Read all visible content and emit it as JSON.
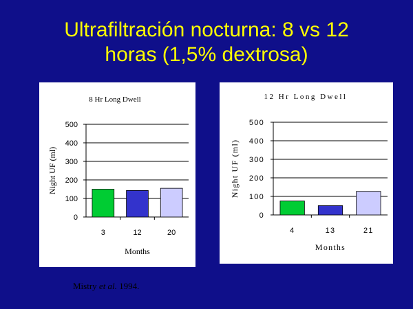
{
  "slide": {
    "title_line1": "Ultrafiltración nocturna: 8 vs 12",
    "title_line2": "horas (1,5% dextrosa)",
    "citation_author": "Mistry",
    "citation_etal": "et al.",
    "citation_year": " 1994."
  },
  "colors": {
    "background": "#0f0f8a",
    "title": "#ffff00",
    "bar_green": "#00cc33",
    "bar_blue": "#3333cc",
    "bar_lavender": "#ccccff"
  },
  "chart_data": [
    {
      "type": "bar",
      "title": "8 Hr Long Dwell",
      "xlabel": "Months",
      "ylabel": "Night UF (ml)",
      "categories": [
        "3",
        "12",
        "20"
      ],
      "values": [
        150,
        143,
        155
      ],
      "ylim": [
        0,
        500
      ],
      "yticks": [
        0,
        100,
        200,
        300,
        400,
        500
      ],
      "grid": true,
      "bar_colors": [
        "#00cc33",
        "#3333cc",
        "#ccccff"
      ]
    },
    {
      "type": "bar",
      "title": "12 Hr Long Dwell",
      "xlabel": "Months",
      "ylabel": "Night UF (ml)",
      "categories": [
        "4",
        "13",
        "21"
      ],
      "values": [
        75,
        50,
        127
      ],
      "ylim": [
        0,
        500
      ],
      "yticks": [
        0,
        100,
        200,
        300,
        400,
        500
      ],
      "grid": true,
      "bar_colors": [
        "#00cc33",
        "#3333cc",
        "#ccccff"
      ]
    }
  ]
}
